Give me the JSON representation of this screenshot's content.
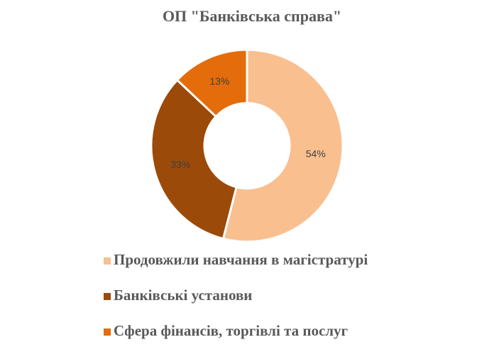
{
  "chart_data": {
    "type": "doughnut",
    "title": "ОП \"Банківська справа\"",
    "categories": [
      "Продовжили навчання в магістратурі",
      "Банківські установи",
      "Сфера фінансів, торгівлі та послуг"
    ],
    "values": [
      54,
      33,
      13
    ],
    "value_labels": [
      "54%",
      "33%",
      "13%"
    ],
    "colors": [
      "#f9bf8f",
      "#9b4a09",
      "#e46c0a"
    ],
    "legend": "bottom"
  }
}
